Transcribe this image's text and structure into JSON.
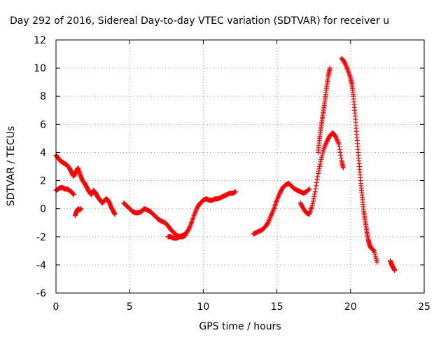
{
  "chart_data": {
    "type": "scatter",
    "title": "Day 292 of 2016, Sidereal Day-to-day VTEC variation (SDTVAR) for receiver u",
    "xlabel": "GPS time / hours",
    "ylabel": "SDTVAR / TECUs",
    "xlim": [
      0,
      25
    ],
    "ylim": [
      -6,
      12
    ],
    "x_ticks": [
      0,
      5,
      10,
      15,
      20,
      25
    ],
    "y_ticks": [
      -6,
      -4,
      -2,
      0,
      2,
      4,
      6,
      8,
      10,
      12
    ],
    "grid": true,
    "marker": "plus",
    "color": "#ff0000",
    "series": [
      {
        "x": [
          0.0,
          0.15,
          0.3,
          0.45,
          0.6,
          0.75,
          0.9,
          1.05,
          1.2,
          1.35,
          1.5,
          1.65,
          1.8,
          1.95,
          2.1,
          2.25,
          2.4,
          2.55,
          2.7,
          2.85,
          3.0,
          3.15,
          3.3,
          3.45,
          3.6,
          3.75,
          3.9,
          4.0
        ],
        "y": [
          3.8,
          3.6,
          3.4,
          3.3,
          3.2,
          3.1,
          2.9,
          2.6,
          2.3,
          2.6,
          2.9,
          2.4,
          2.0,
          1.8,
          1.5,
          1.2,
          1.0,
          1.3,
          1.1,
          0.8,
          0.6,
          0.4,
          0.6,
          0.7,
          0.5,
          0.1,
          -0.2,
          -0.4
        ]
      },
      {
        "x": [
          0.0,
          0.15,
          0.3,
          0.45,
          0.6,
          0.75,
          0.9,
          1.05,
          1.2
        ],
        "y": [
          1.3,
          1.4,
          1.5,
          1.5,
          1.4,
          1.4,
          1.3,
          1.2,
          1.0
        ]
      },
      {
        "x": [
          1.3,
          1.4,
          1.5,
          1.6,
          1.7
        ],
        "y": [
          -0.5,
          -0.2,
          0.0,
          -0.1,
          0.0
        ]
      },
      {
        "x": [
          4.6,
          4.8,
          5.0,
          5.2,
          5.4,
          5.6,
          5.8,
          6.0,
          6.2,
          6.4,
          6.6,
          6.8,
          7.0,
          7.2,
          7.4,
          7.6,
          7.8,
          8.0,
          8.2,
          8.4,
          8.6,
          8.8,
          9.0,
          9.2,
          9.4,
          9.6,
          9.8,
          10.0,
          10.2,
          10.4,
          10.6,
          10.8,
          11.0,
          11.2,
          11.4,
          11.6,
          11.8,
          12.0,
          12.2
        ],
        "y": [
          0.4,
          0.2,
          0.0,
          -0.2,
          -0.3,
          -0.3,
          -0.2,
          0.0,
          -0.1,
          -0.2,
          -0.4,
          -0.6,
          -0.8,
          -0.9,
          -1.0,
          -1.2,
          -1.5,
          -1.7,
          -1.9,
          -2.0,
          -1.9,
          -1.8,
          -1.5,
          -1.0,
          -0.4,
          0.1,
          0.4,
          0.6,
          0.7,
          0.6,
          0.6,
          0.7,
          0.7,
          0.8,
          0.9,
          1.0,
          1.1,
          1.1,
          1.2
        ]
      },
      {
        "x": [
          7.6,
          7.8,
          8.0,
          8.2,
          8.4,
          8.6,
          8.8
        ],
        "y": [
          -2.0,
          -2.0,
          -2.1,
          -2.1,
          -2.0,
          -2.0,
          -1.9
        ]
      },
      {
        "x": [
          13.4,
          13.6,
          13.8,
          14.0,
          14.2,
          14.4,
          14.6,
          14.8,
          15.0,
          15.2,
          15.4,
          15.6,
          15.8,
          16.0,
          16.2,
          16.4,
          16.6,
          16.8,
          17.0,
          17.2
        ],
        "y": [
          -1.8,
          -1.7,
          -1.6,
          -1.5,
          -1.3,
          -1.0,
          -0.5,
          0.0,
          0.6,
          1.1,
          1.5,
          1.7,
          1.8,
          1.6,
          1.4,
          1.3,
          1.2,
          1.1,
          1.2,
          1.4
        ]
      },
      {
        "x": [
          16.6,
          16.8,
          17.0,
          17.2,
          17.4,
          17.6,
          17.8,
          18.0,
          18.2,
          18.4,
          18.6,
          18.8,
          19.0,
          19.2,
          19.4,
          19.5
        ],
        "y": [
          0.4,
          0.0,
          -0.3,
          -0.4,
          0.2,
          1.2,
          2.5,
          3.5,
          4.3,
          4.8,
          5.2,
          5.4,
          5.1,
          4.6,
          3.4,
          2.9
        ]
      },
      {
        "x": [
          17.8,
          17.9,
          18.0,
          18.1,
          18.2,
          18.3,
          18.4,
          18.5,
          18.6
        ],
        "y": [
          4.0,
          5.0,
          5.8,
          6.5,
          7.2,
          8.0,
          8.8,
          9.5,
          10.0
        ]
      },
      {
        "x": [
          19.4,
          19.6,
          19.8,
          20.0,
          20.1,
          20.2,
          20.3,
          20.4,
          20.5,
          20.6,
          20.7,
          20.8,
          20.9,
          21.0,
          21.1,
          21.2,
          21.3,
          21.4,
          21.6,
          21.8
        ],
        "y": [
          10.7,
          10.4,
          9.9,
          9.3,
          8.8,
          8.0,
          6.8,
          5.5,
          4.2,
          3.0,
          1.8,
          0.8,
          -0.2,
          -0.9,
          -1.6,
          -2.2,
          -2.6,
          -2.8,
          -3.0,
          -3.8
        ]
      },
      {
        "x": [
          22.7,
          22.8,
          22.9,
          23.0
        ],
        "y": [
          -3.7,
          -4.0,
          -4.2,
          -4.4
        ]
      }
    ]
  }
}
